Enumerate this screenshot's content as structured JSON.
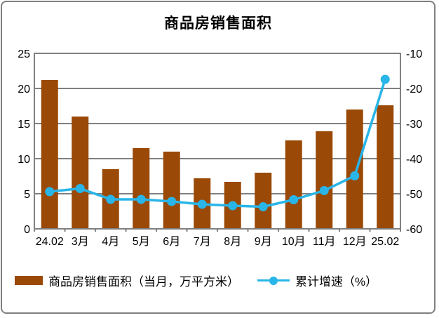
{
  "chart_data": {
    "type": "bar",
    "combo": "bar+line dual axis",
    "title": "商品房销售面积",
    "categories": [
      "24.02",
      "3月",
      "4月",
      "5月",
      "6月",
      "7月",
      "8月",
      "9月",
      "10月",
      "11月",
      "12月",
      "25.02"
    ],
    "series": [
      {
        "name": "商品房销售面积（当月，万平方米）",
        "type": "bar",
        "axis": "left",
        "color": "#9A4906",
        "values": [
          21.2,
          16.0,
          8.5,
          11.5,
          11.0,
          7.2,
          6.7,
          8.0,
          12.6,
          13.9,
          17.0,
          17.6
        ]
      },
      {
        "name": "累计增速（%）",
        "type": "line",
        "axis": "right",
        "color": "#29B5E8",
        "values": [
          -49.4,
          -48.5,
          -51.6,
          -51.6,
          -52.2,
          -53.0,
          -53.4,
          -53.7,
          -51.7,
          -49.1,
          -44.9,
          -17.4
        ]
      }
    ],
    "left_axis": {
      "min": 0,
      "max": 25,
      "ticks": [
        0,
        5,
        10,
        15,
        20,
        25
      ]
    },
    "right_axis": {
      "min": -60,
      "max": -10,
      "ticks": [
        -60,
        -50,
        -40,
        -30,
        -20,
        -10
      ]
    },
    "grid": true,
    "grid_color": "#808080",
    "plot_border_color": "#808080",
    "legend_position": "bottom"
  }
}
